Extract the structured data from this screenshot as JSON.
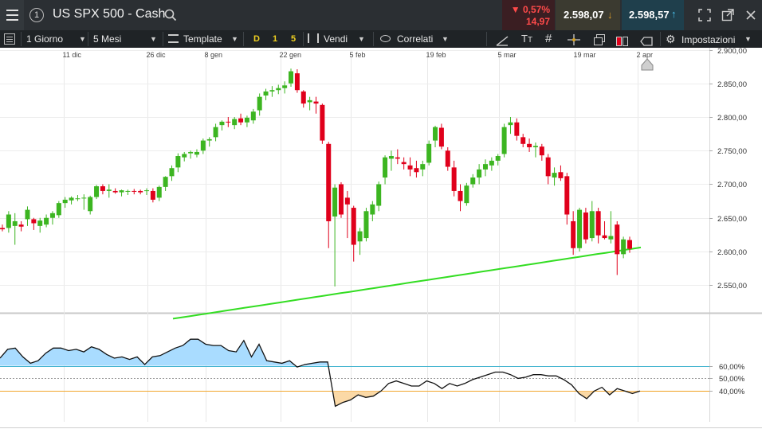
{
  "header": {
    "instrument_number": "1",
    "title": "US SPX 500 - Cash",
    "change_pct": "▼ 0,57%",
    "change_abs": "14,97",
    "sell_price": "2.598,07",
    "buy_price": "2.598,57"
  },
  "toolbar": {
    "interval": "1 Giorno",
    "range": "5 Mesi",
    "template": "Template",
    "quick_d": "D",
    "quick_1": "1",
    "quick_5": "5",
    "side": "Vendi",
    "related": "Correlati",
    "settings": "Impostazioni",
    "text_tool": "T",
    "text_tool_sub": "T"
  },
  "colors": {
    "up": "#3cb521",
    "down": "#e0001b",
    "ma": "#33dd22",
    "rsi_over": "#a9dcff",
    "rsi_under": "#fbd9a6",
    "line_60": "#45b5d0",
    "line_40": "#f0a020"
  },
  "chart_data": [
    {
      "type": "candlestick",
      "x_tick_labels": [
        "11 dic",
        "26 dic",
        "8 gen",
        "22 gen",
        "5 feb",
        "19 feb",
        "5 mar",
        "19 mar",
        "2 apr"
      ],
      "y_tick_labels": [
        "2.900,00",
        "2.850,00",
        "2.800,00",
        "2.750,00",
        "2.700,00",
        "2.650,00",
        "2.600,00",
        "2.550,00"
      ],
      "ylim": [
        2510,
        2903
      ],
      "grid": true,
      "series": [
        {
          "kind": "ohlc",
          "values": [
            [
              2635,
              2640,
              2630,
              2633
            ],
            [
              2635,
              2660,
              2628,
              2655
            ],
            [
              2638,
              2657,
              2610,
              2645
            ],
            [
              2640,
              2645,
              2630,
              2637
            ],
            [
              2648,
              2667,
              2638,
              2662
            ],
            [
              2648,
              2650,
              2632,
              2642
            ],
            [
              2638,
              2650,
              2628,
              2646
            ],
            [
              2640,
              2655,
              2636,
              2650
            ],
            [
              2650,
              2660,
              2640,
              2657
            ],
            [
              2654,
              2675,
              2650,
              2672
            ],
            [
              2672,
              2681,
              2665,
              2677
            ],
            [
              2676,
              2682,
              2670,
              2680
            ],
            [
              2679,
              2684,
              2675,
              2679
            ],
            [
              2679,
              2685,
              2662,
              2680
            ],
            [
              2660,
              2683,
              2655,
              2681
            ],
            [
              2681,
              2699,
              2678,
              2697
            ],
            [
              2697,
              2700,
              2685,
              2690
            ],
            [
              2690,
              2700,
              2680,
              2692
            ],
            [
              2690,
              2694,
              2686,
              2688
            ],
            [
              2688,
              2692,
              2682,
              2691
            ],
            [
              2689,
              2692,
              2684,
              2690
            ],
            [
              2690,
              2693,
              2685,
              2689
            ],
            [
              2690,
              2692,
              2685,
              2688
            ],
            [
              2690,
              2694,
              2684,
              2691
            ],
            [
              2690,
              2694,
              2673,
              2677
            ],
            [
              2680,
              2698,
              2675,
              2696
            ],
            [
              2696,
              2712,
              2690,
              2711
            ],
            [
              2712,
              2728,
              2705,
              2724
            ],
            [
              2725,
              2746,
              2718,
              2742
            ],
            [
              2740,
              2748,
              2734,
              2745
            ],
            [
              2746,
              2750,
              2738,
              2748
            ],
            [
              2744,
              2752,
              2740,
              2748
            ],
            [
              2750,
              2768,
              2745,
              2765
            ],
            [
              2765,
              2770,
              2756,
              2767
            ],
            [
              2770,
              2790,
              2764,
              2785
            ],
            [
              2788,
              2795,
              2780,
              2793
            ],
            [
              2793,
              2800,
              2785,
              2792
            ],
            [
              2788,
              2800,
              2782,
              2797
            ],
            [
              2798,
              2805,
              2788,
              2792
            ],
            [
              2792,
              2802,
              2785,
              2799
            ],
            [
              2795,
              2812,
              2790,
              2808
            ],
            [
              2810,
              2835,
              2802,
              2830
            ],
            [
              2832,
              2842,
              2825,
              2838
            ],
            [
              2838,
              2846,
              2830,
              2840
            ],
            [
              2840,
              2848,
              2834,
              2843
            ],
            [
              2843,
              2853,
              2835,
              2847
            ],
            [
              2850,
              2872,
              2845,
              2868
            ],
            [
              2865,
              2871,
              2836,
              2840
            ],
            [
              2838,
              2840,
              2814,
              2820
            ],
            [
              2822,
              2830,
              2810,
              2825
            ],
            [
              2823,
              2830,
              2805,
              2820
            ],
            [
              2818,
              2820,
              2760,
              2765
            ],
            [
              2760,
              2763,
              2605,
              2645
            ],
            [
              2652,
              2700,
              2548,
              2695
            ],
            [
              2700,
              2703,
              2650,
              2655
            ],
            [
              2680,
              2690,
              2620,
              2670
            ],
            [
              2665,
              2668,
              2585,
              2610
            ],
            [
              2615,
              2635,
              2595,
              2630
            ],
            [
              2620,
              2665,
              2615,
              2660
            ],
            [
              2655,
              2675,
              2645,
              2670
            ],
            [
              2668,
              2704,
              2660,
              2700
            ],
            [
              2710,
              2743,
              2700,
              2740
            ],
            [
              2738,
              2750,
              2720,
              2742
            ],
            [
              2740,
              2752,
              2730,
              2738
            ],
            [
              2733,
              2740,
              2722,
              2730
            ],
            [
              2728,
              2740,
              2712,
              2722
            ],
            [
              2724,
              2735,
              2710,
              2718
            ],
            [
              2722,
              2735,
              2712,
              2730
            ],
            [
              2732,
              2765,
              2728,
              2760
            ],
            [
              2765,
              2787,
              2755,
              2785
            ],
            [
              2784,
              2790,
              2752,
              2756
            ],
            [
              2750,
              2755,
              2720,
              2726
            ],
            [
              2725,
              2735,
              2682,
              2690
            ],
            [
              2690,
              2700,
              2660,
              2675
            ],
            [
              2672,
              2702,
              2668,
              2698
            ],
            [
              2700,
              2715,
              2695,
              2710
            ],
            [
              2710,
              2730,
              2700,
              2722
            ],
            [
              2722,
              2737,
              2712,
              2730
            ],
            [
              2728,
              2740,
              2720,
              2735
            ],
            [
              2735,
              2745,
              2728,
              2742
            ],
            [
              2745,
              2790,
              2740,
              2785
            ],
            [
              2788,
              2800,
              2775,
              2792
            ],
            [
              2792,
              2798,
              2765,
              2772
            ],
            [
              2770,
              2775,
              2755,
              2760
            ],
            [
              2760,
              2768,
              2748,
              2755
            ],
            [
              2755,
              2762,
              2740,
              2757
            ],
            [
              2756,
              2760,
              2735,
              2743
            ],
            [
              2740,
              2745,
              2700,
              2712
            ],
            [
              2710,
              2725,
              2698,
              2717
            ],
            [
              2718,
              2728,
              2705,
              2709
            ],
            [
              2712,
              2717,
              2640,
              2655
            ],
            [
              2645,
              2660,
              2595,
              2605
            ],
            [
              2605,
              2665,
              2600,
              2662
            ],
            [
              2658,
              2665,
              2612,
              2618
            ],
            [
              2620,
              2675,
              2615,
              2660
            ],
            [
              2660,
              2665,
              2612,
              2624
            ],
            [
              2624,
              2645,
              2618,
              2620
            ],
            [
              2618,
              2660,
              2612,
              2623
            ],
            [
              2640,
              2645,
              2565,
              2596
            ],
            [
              2596,
              2622,
              2590,
              2618
            ],
            [
              2617,
              2622,
              2598,
              2604
            ]
          ]
        },
        {
          "name": "",
          "kind": "line",
          "values": [
            2500,
            2502,
            2504,
            2506,
            2508,
            2510,
            2512,
            2514,
            2516,
            2518,
            2520,
            2522,
            2524,
            2526,
            2528,
            2530,
            2532,
            2534,
            2536,
            2538,
            2540,
            2542,
            2544,
            2546,
            2548,
            2550,
            2552,
            2554,
            2556,
            2558,
            2560,
            2562,
            2564,
            2566,
            2568,
            2570,
            2572,
            2574,
            2576,
            2578,
            2580,
            2582,
            2584,
            2586,
            2588,
            2590,
            2592,
            2594,
            2596,
            2598,
            2600,
            2602,
            2604,
            2606
          ]
        }
      ]
    },
    {
      "type": "line",
      "y_tick_labels": [
        "60,00%",
        "50,00%",
        "40,00%"
      ],
      "ylim": [
        10,
        100
      ],
      "reference_lines": [
        60,
        50,
        40
      ],
      "series": [
        {
          "name": "",
          "values": [
            66,
            73,
            74,
            67,
            62,
            64,
            70,
            74,
            74,
            72,
            73,
            71,
            75,
            73,
            69,
            66,
            67,
            65,
            67,
            61,
            67,
            68,
            71,
            74,
            76,
            81,
            81,
            77,
            76,
            76,
            72,
            71,
            80,
            67,
            77,
            64,
            63,
            62,
            64,
            59,
            61,
            62,
            63,
            63,
            28,
            31,
            33,
            37,
            35,
            36,
            40,
            46,
            48,
            46,
            44,
            44,
            48,
            46,
            42,
            46,
            44,
            46,
            49,
            51,
            53,
            55,
            55,
            53,
            50,
            51,
            53,
            53,
            52,
            52,
            49,
            45,
            38,
            34,
            40,
            43,
            37,
            42,
            40,
            38,
            40
          ]
        }
      ]
    }
  ]
}
